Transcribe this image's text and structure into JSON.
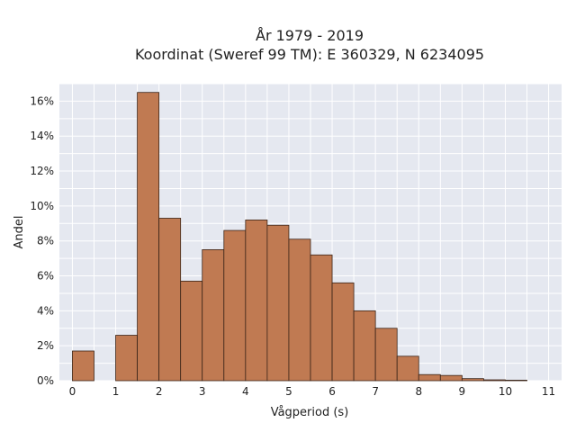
{
  "chart_data": {
    "type": "bar",
    "title_line1": "År 1979 - 2019",
    "title_line2": "Koordinat (Sweref 99 TM): E 360329, N 6234095",
    "xlabel": "Vågperiod (s)",
    "ylabel": "Andel",
    "bin_width": 0.5,
    "bin_starts": [
      0,
      0.5,
      1,
      1.5,
      2,
      2.5,
      3,
      3.5,
      4,
      4.5,
      5,
      5.5,
      6,
      6.5,
      7,
      7.5,
      8,
      8.5,
      9,
      9.5,
      10,
      10.5,
      11
    ],
    "values": [
      1.7,
      0,
      2.6,
      16.5,
      9.3,
      5.7,
      7.5,
      8.6,
      9.2,
      8.9,
      8.1,
      7.2,
      5.6,
      4.0,
      3.0,
      1.4,
      0.35,
      0.3,
      0.12,
      0.05,
      0.03,
      0,
      0
    ],
    "xlim": [
      -0.3,
      11.3
    ],
    "ylim": [
      0,
      17
    ],
    "x_ticks": [
      "0",
      "1",
      "2",
      "3",
      "4",
      "5",
      "6",
      "7",
      "8",
      "9",
      "10",
      "11"
    ],
    "y_ticks": [
      "0%",
      "2%",
      "4%",
      "6%",
      "8%",
      "10%",
      "12%",
      "14%",
      "16%"
    ],
    "bar_color": "#c07a52",
    "bar_edge_color": "#3a2418",
    "plot_background": "#e5e8f0",
    "grid": true
  }
}
